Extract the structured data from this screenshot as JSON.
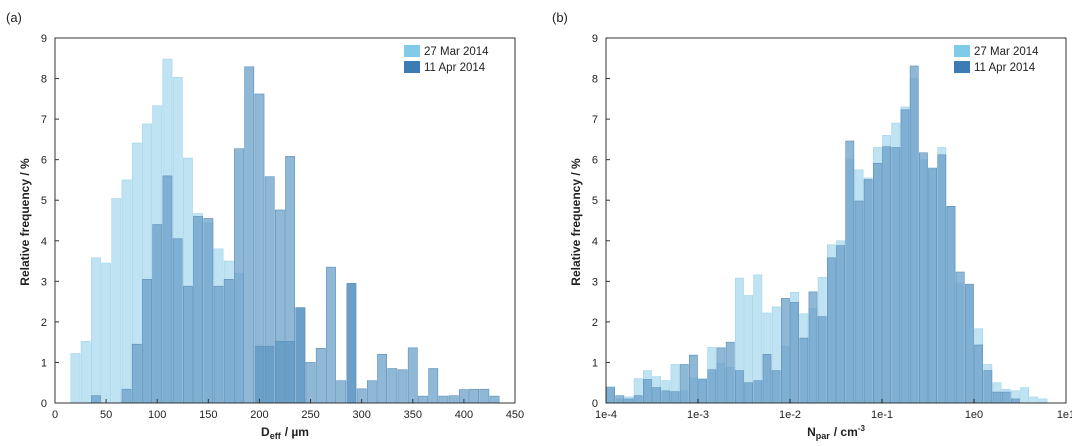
{
  "colors": {
    "series1_fill": "#bfe3f2",
    "series1_edge": "#9fd3ea",
    "series2_fill": "#6a9fc8",
    "series2_edge": "#5d8fb8",
    "legend1": "#7fcbe8",
    "legend2": "#3b7cb5"
  },
  "chart_data": [
    {
      "type": "bar",
      "panel_label": "(a)",
      "xlabel_main": "D",
      "xlabel_sub": "eff",
      "xlabel_unit": "/ µm",
      "ylabel": "Relative frequency  / %",
      "xlim": [
        0,
        450
      ],
      "ylim": [
        0,
        9
      ],
      "xticks": [
        0,
        50,
        100,
        150,
        200,
        250,
        300,
        350,
        400,
        450
      ],
      "xtick_labels": [
        "0",
        "50",
        "100",
        "150",
        "200",
        "250",
        "300",
        "350",
        "400",
        "450"
      ],
      "yticks": [
        0,
        1,
        2,
        3,
        4,
        5,
        6,
        7,
        8,
        9
      ],
      "ytick_labels": [
        "0",
        "1",
        "2",
        "3",
        "4",
        "5",
        "6",
        "7",
        "8",
        "9"
      ],
      "legend_position": "top-right",
      "bin_centers": [
        20,
        30,
        40,
        50,
        60,
        70,
        80,
        90,
        100,
        110,
        120,
        130,
        140,
        150,
        160,
        170,
        180,
        190,
        200,
        210,
        220,
        230,
        240,
        250,
        260,
        270,
        280,
        290,
        300,
        310,
        320,
        330,
        340,
        350,
        360,
        370,
        380,
        390,
        400,
        410,
        420,
        430
      ],
      "bin_width": 10,
      "series": [
        {
          "name": "27 Mar 2014",
          "values": [
            1.22,
            1.52,
            3.58,
            3.45,
            5.04,
            5.5,
            6.41,
            6.88,
            7.33,
            8.48,
            8.03,
            6.04,
            4.67,
            4.44,
            3.8,
            3.5,
            3.2,
            0,
            0,
            0,
            0,
            0,
            0,
            0,
            0,
            0,
            0,
            0,
            0,
            0,
            0,
            0,
            0,
            0,
            0,
            0,
            0,
            0,
            0,
            0,
            0,
            0
          ]
        },
        {
          "name": "11 Apr 2014",
          "values": [
            0,
            0,
            0.18,
            0,
            0,
            0.34,
            1.45,
            3.05,
            4.4,
            5.6,
            4.05,
            2.88,
            4.6,
            4.55,
            2.88,
            3.05,
            6.27,
            8.29,
            7.62,
            5.58,
            4.76,
            6.08,
            2.35,
            1.0,
            1.35,
            3.35,
            0.55,
            0,
            0.35,
            0.55,
            1.2,
            0.85,
            0.82,
            1.36,
            0.17,
            0.85,
            0.17,
            0.18,
            0.33,
            0.34,
            0.34,
            0.17
          ]
        }
      ],
      "overlay": [
        0,
        0,
        0,
        0,
        0,
        0,
        0,
        0,
        0,
        0,
        0,
        0,
        0,
        0,
        0,
        0,
        0,
        0,
        1.4,
        1.4,
        1.52,
        1.52,
        2.35,
        0,
        0,
        0,
        0,
        2.95,
        0,
        0,
        0,
        0,
        0,
        0,
        0,
        0,
        0,
        0,
        0,
        0,
        0,
        0
      ]
    },
    {
      "type": "bar",
      "panel_label": "(b)",
      "xlabel_main": "N",
      "xlabel_sub": "par",
      "xlabel_unit": "/ cm",
      "xlabel_sup": "-3",
      "ylabel": "Relative frequency  / %",
      "xscale": "log",
      "xlim": [
        -4,
        1
      ],
      "ylim": [
        0,
        9
      ],
      "xticks": [
        -4,
        -3,
        -2,
        -1,
        0,
        1
      ],
      "xtick_labels": [
        "1e-4",
        "1e-3",
        "1e-2",
        "1e-1",
        "1e0",
        "1e1"
      ],
      "yticks": [
        0,
        1,
        2,
        3,
        4,
        5,
        6,
        7,
        8,
        9
      ],
      "ytick_labels": [
        "0",
        "1",
        "2",
        "3",
        "4",
        "5",
        "6",
        "7",
        "8",
        "9"
      ],
      "legend_position": "top-right",
      "bins_per_decade": 10,
      "series": [
        {
          "name": "27 Mar 2014",
          "values": [
            0.4,
            0.1,
            0.15,
            0.6,
            0.8,
            0.65,
            0.55,
            0.95,
            0.3,
            0.62,
            0.6,
            1.37,
            0.98,
            0.88,
            3.08,
            2.65,
            3.16,
            2.22,
            2.37,
            1.4,
            2.73,
            2.2,
            2.33,
            3.1,
            3.9,
            4.0,
            6.0,
            5.75,
            5.55,
            6.3,
            6.6,
            6.9,
            7.3,
            8.0,
            6.0,
            5.8,
            6.3,
            4.85,
            2.96,
            2.9,
            1.83,
            0.95,
            0.5,
            0.34,
            0.3,
            0.38,
            0.15,
            0.1,
            0.0,
            0.0,
            0.0,
            0.25
          ]
        },
        {
          "name": "11 Apr 2014",
          "values": [
            0.38,
            0.18,
            0.1,
            0.18,
            0.58,
            0.38,
            0.3,
            0.28,
            0.95,
            1.18,
            0.58,
            0.82,
            1.36,
            1.5,
            0.8,
            0.5,
            0.55,
            1.2,
            0.8,
            2.58,
            2.48,
            1.6,
            2.74,
            2.13,
            3.58,
            3.88,
            6.46,
            4.98,
            5.51,
            5.91,
            6.32,
            6.3,
            7.23,
            8.31,
            6.17,
            5.78,
            6.12,
            4.85,
            3.23,
            2.93,
            1.43,
            0.8,
            0.27,
            0.27,
            0.1,
            0.0,
            0.0,
            0.0,
            0.0,
            0.0,
            0.0,
            0.0
          ]
        }
      ],
      "overlay": []
    }
  ]
}
